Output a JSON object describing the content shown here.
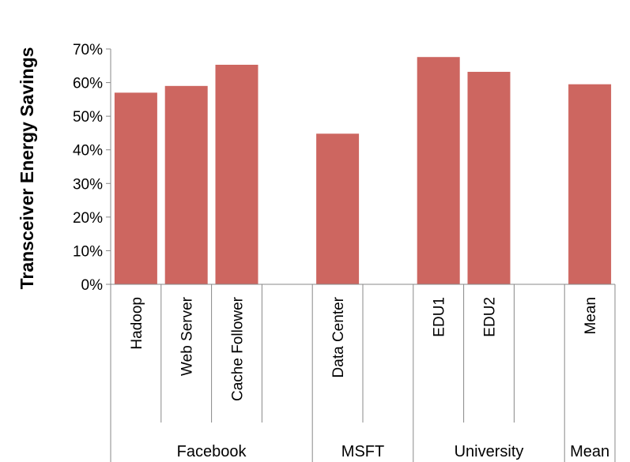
{
  "chart_data": {
    "type": "bar",
    "title": "",
    "xlabel": "",
    "ylabel": "Transceiver Energy Savings",
    "ylim": [
      0,
      70
    ],
    "y_ticks": [
      "0%",
      "10%",
      "20%",
      "30%",
      "40%",
      "50%",
      "60%",
      "70%"
    ],
    "grid": false,
    "legend": "none",
    "bar_color": "#cd6660",
    "categories": [
      "Hadoop",
      "Web Server",
      "Cache Follower",
      "",
      "Data Center",
      "",
      "EDU1",
      "EDU2",
      "",
      "Mean"
    ],
    "values": [
      57,
      59,
      65.3,
      null,
      44.8,
      null,
      67.6,
      63.2,
      null,
      59.5
    ],
    "groups": [
      {
        "label": "Facebook",
        "start": 0,
        "end": 3
      },
      {
        "label": "MSFT",
        "start": 4,
        "end": 5
      },
      {
        "label": "University",
        "start": 6,
        "end": 8
      },
      {
        "label": "Mean",
        "start": 9,
        "end": 9
      }
    ]
  }
}
